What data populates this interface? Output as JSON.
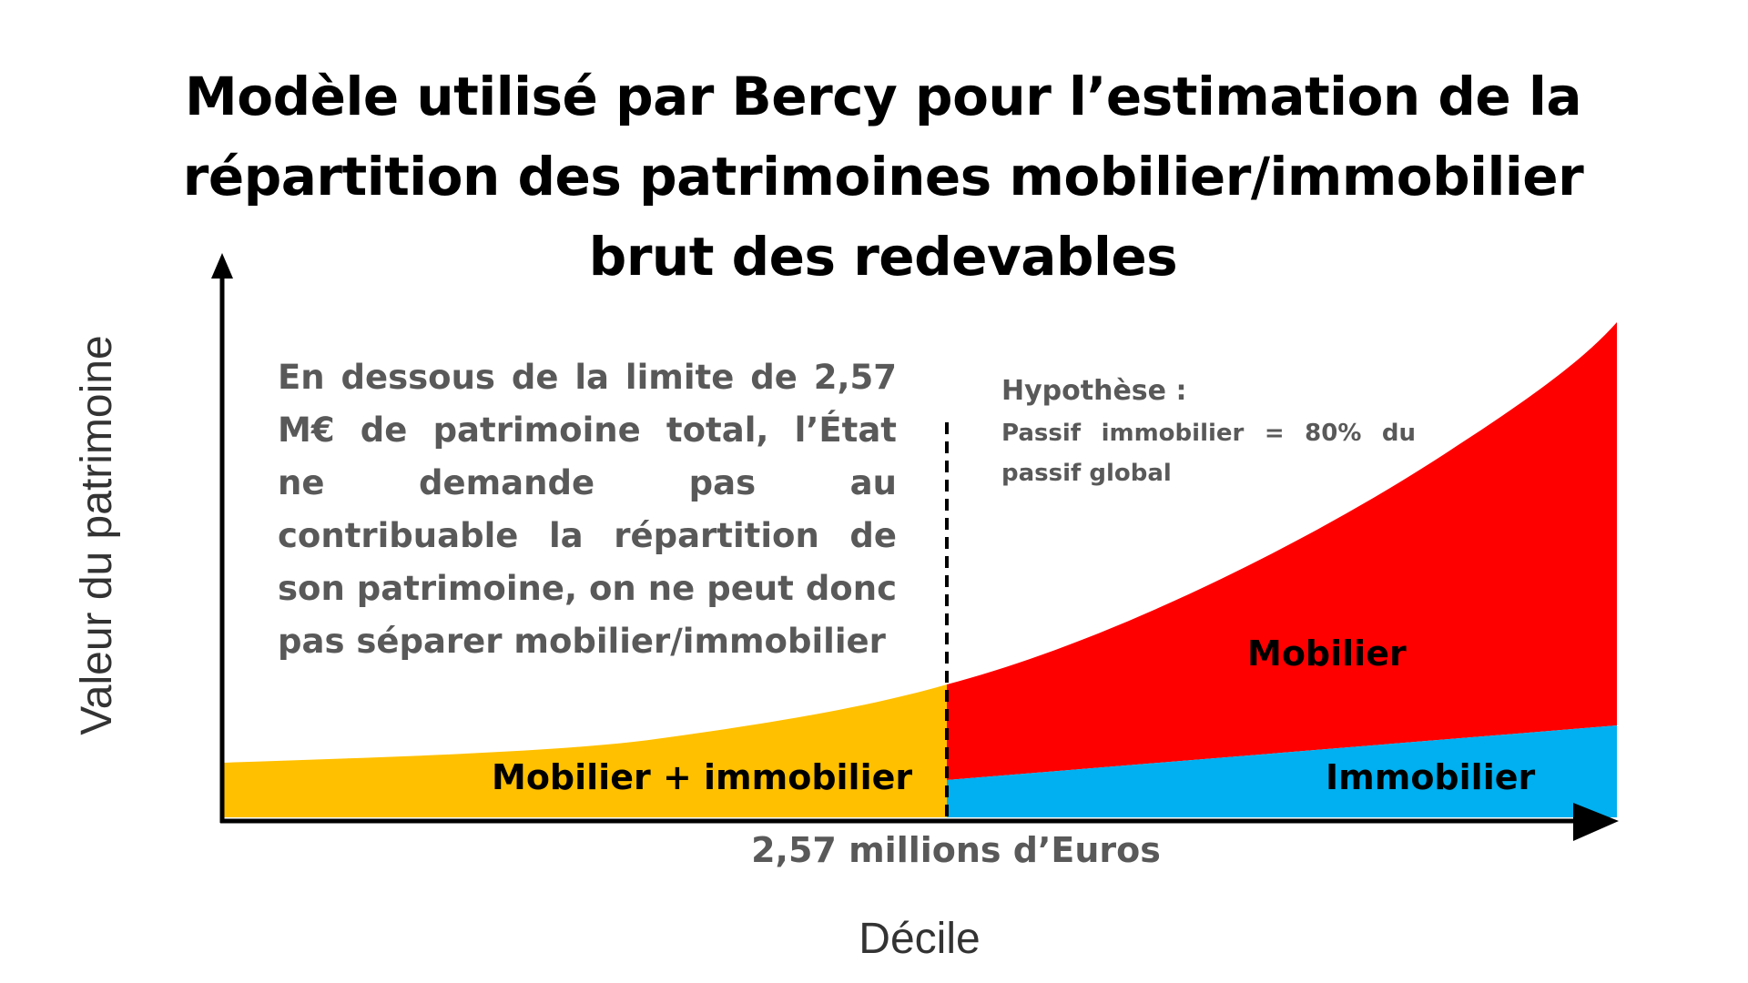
{
  "title": {
    "line1": "Modèle utilisé par Bercy pour l’estimation de la",
    "line2": "répartition des patrimoines mobilier/immobilier",
    "line3": "brut des redevables"
  },
  "axes": {
    "x_label": "Décile",
    "y_label": "Valeur du patrimoine",
    "threshold_label": "2,57 millions d’Euros"
  },
  "notes": {
    "left": "En dessous de la limite de 2,57 M€ de patrimoine total, l’État ne demande pas au contribuable la répartition de son patrimoine, on ne peut donc pas séparer mobilier/immobilier",
    "right_heading": "Hypothèse :",
    "right_body": "Passif immobilier = 80% du passif global"
  },
  "regions": {
    "mixed": "Mobilier + immobilier",
    "mobilier": "Mobilier",
    "immobilier": "Immobilier"
  },
  "colors": {
    "mixed": "#FFC000",
    "mobilier": "#FF0000",
    "immobilier": "#00B0F0",
    "axis": "#000000",
    "note_text": "#595959"
  }
}
